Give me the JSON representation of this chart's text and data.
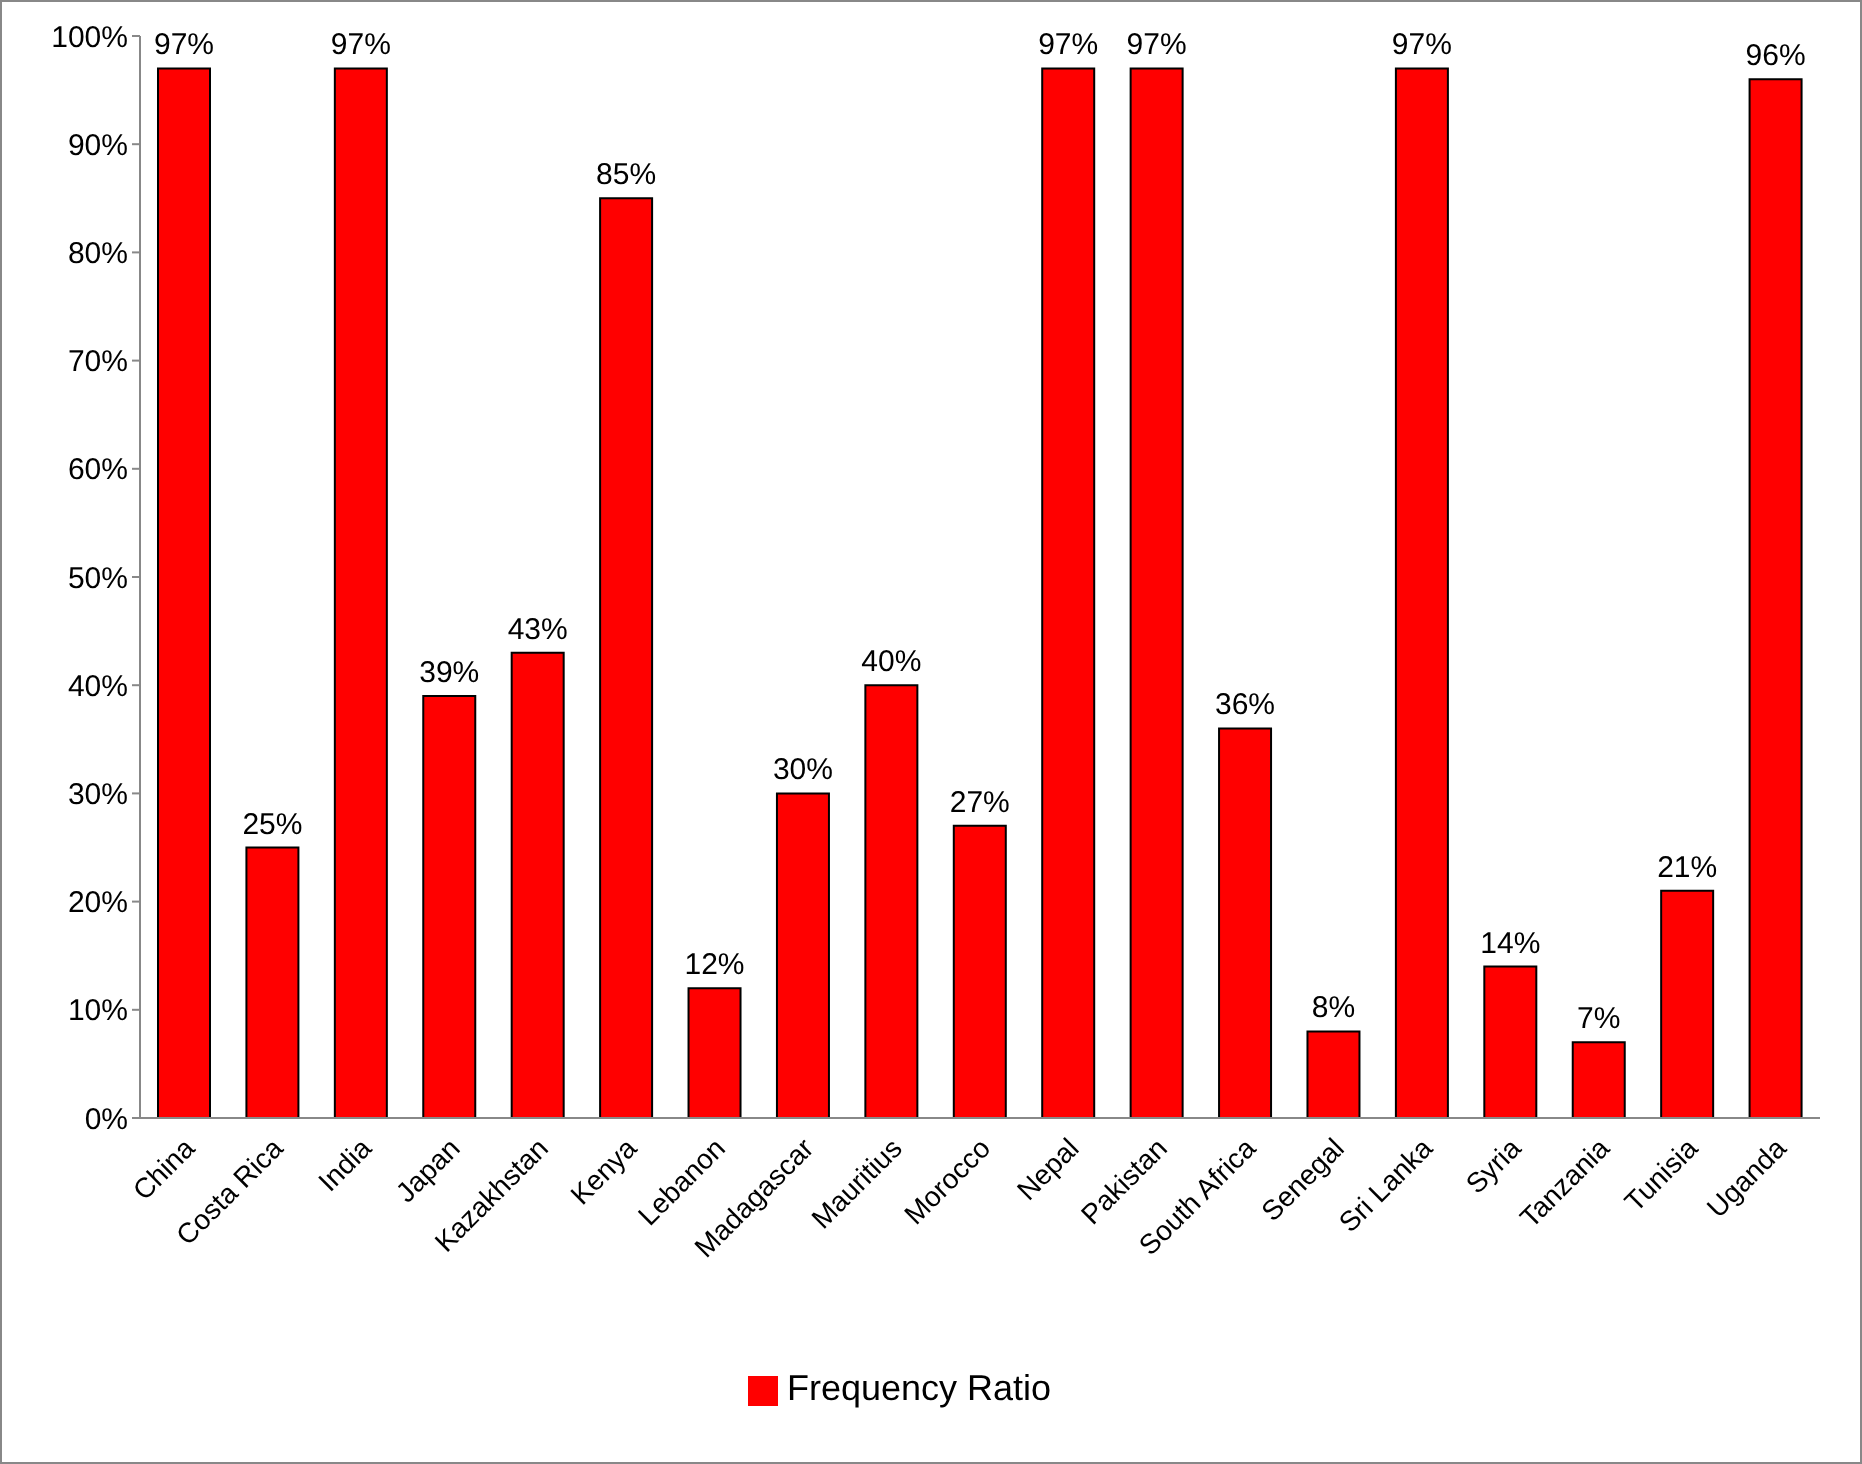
{
  "chart_data": {
    "type": "bar",
    "categories": [
      "China",
      "Costa Rica",
      "India",
      "Japan",
      "Kazakhstan",
      "Kenya",
      "Lebanon",
      "Madagascar",
      "Mauritius",
      "Morocco",
      "Nepal",
      "Pakistan",
      "South Africa",
      "Senegal",
      "Sri Lanka",
      "Syria",
      "Tanzania",
      "Tunisia",
      "Uganda"
    ],
    "series": [
      {
        "name": "Frequency Ratio",
        "color": "#ff0000",
        "values": [
          97,
          25,
          97,
          39,
          43,
          85,
          12,
          30,
          40,
          27,
          97,
          97,
          36,
          8,
          97,
          14,
          7,
          21,
          96
        ],
        "value_labels": [
          "97%",
          "25%",
          "97%",
          "39%",
          "43%",
          "85%",
          "12%",
          "30%",
          "40%",
          "27%",
          "97%",
          "97%",
          "36%",
          "8%",
          "97%",
          "14%",
          "7%",
          "21%",
          "96%"
        ]
      }
    ],
    "ylim": [
      0,
      100
    ],
    "yticks": [
      {
        "value": 0,
        "label": "0%"
      },
      {
        "value": 10,
        "label": "10%"
      },
      {
        "value": 20,
        "label": "20%"
      },
      {
        "value": 30,
        "label": "30%"
      },
      {
        "value": 40,
        "label": "40%"
      },
      {
        "value": 50,
        "label": "50%"
      },
      {
        "value": 60,
        "label": "60%"
      },
      {
        "value": 70,
        "label": "70%"
      },
      {
        "value": 80,
        "label": "80%"
      },
      {
        "value": 90,
        "label": "90%"
      },
      {
        "value": 100,
        "label": "100%"
      }
    ],
    "grid": false,
    "legend": "bottom"
  }
}
